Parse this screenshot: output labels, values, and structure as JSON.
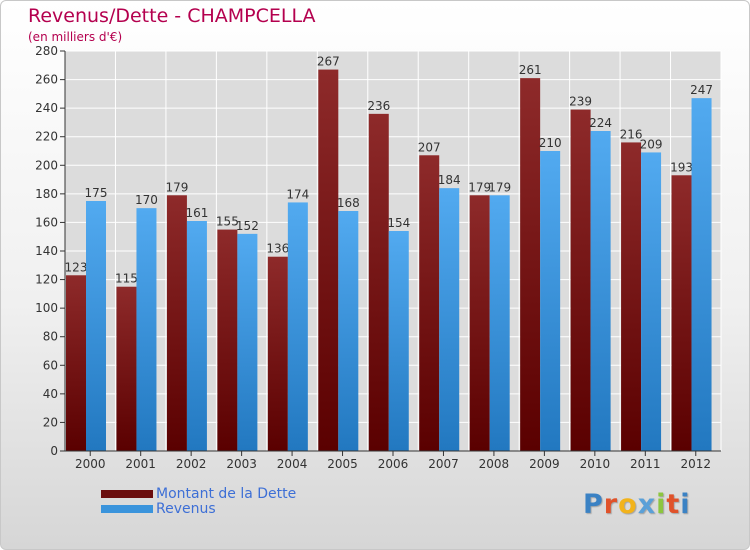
{
  "header": {
    "title": "Revenus/Dette - CHAMPCELLA",
    "subtitle": "(en milliers d'€)"
  },
  "logo": {
    "letters": [
      "P",
      "r",
      "o",
      "x",
      "i",
      "t",
      "i"
    ],
    "colors": [
      "#3b82c4",
      "#e0522a",
      "#f2b31b",
      "#5aa0d8",
      "#8cc63f",
      "#e0522a",
      "#3b82c4"
    ]
  },
  "chart_data": {
    "type": "bar",
    "title": "Revenus/Dette - CHAMPCELLA",
    "ylabel": "(en milliers d'€)",
    "xlabel": "",
    "categories": [
      "2000",
      "2001",
      "2002",
      "2003",
      "2004",
      "2005",
      "2006",
      "2007",
      "2008",
      "2009",
      "2010",
      "2011",
      "2012"
    ],
    "series": [
      {
        "name": "Montant de la Dette",
        "color": "#7a1010",
        "values": [
          123,
          115,
          179,
          155,
          136,
          267,
          236,
          207,
          179,
          261,
          239,
          216,
          193
        ]
      },
      {
        "name": "Revenus",
        "color": "#3a94dc",
        "values": [
          175,
          170,
          161,
          152,
          174,
          168,
          154,
          184,
          179,
          210,
          224,
          209,
          247
        ]
      }
    ],
    "ylim": [
      0,
      280
    ],
    "yticks": [
      0,
      20,
      40,
      60,
      80,
      100,
      120,
      140,
      160,
      180,
      200,
      220,
      240,
      260,
      280
    ],
    "grid": true,
    "legend": "bottom-left"
  }
}
